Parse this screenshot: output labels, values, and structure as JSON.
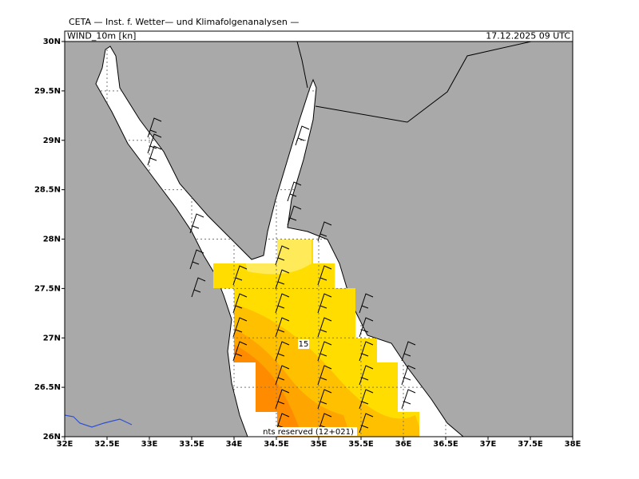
{
  "header": {
    "title": "CETA — Inst. f. Wetter— und Klimafolgenanalysen —",
    "parameter": "WIND_10m [kn]",
    "valid_time": "17.12.2025 09 UTC"
  },
  "map": {
    "xlim": [
      32,
      38
    ],
    "ylim": [
      26,
      30
    ],
    "xticks": [
      {
        "value": 32,
        "label": "32E"
      },
      {
        "value": 32.5,
        "label": "32.5E"
      },
      {
        "value": 33,
        "label": "33E"
      },
      {
        "value": 33.5,
        "label": "33.5E"
      },
      {
        "value": 34,
        "label": "34E"
      },
      {
        "value": 34.5,
        "label": "34.5E"
      },
      {
        "value": 35,
        "label": "35E"
      },
      {
        "value": 35.5,
        "label": "35.5E"
      },
      {
        "value": 36,
        "label": "36E"
      },
      {
        "value": 36.5,
        "label": "36.5E"
      },
      {
        "value": 37,
        "label": "37E"
      },
      {
        "value": 37.5,
        "label": "37.5E"
      },
      {
        "value": 38,
        "label": "38E"
      }
    ],
    "yticks": [
      {
        "value": 26,
        "label": "26N"
      },
      {
        "value": 26.5,
        "label": "26.5N"
      },
      {
        "value": 27,
        "label": "27N"
      },
      {
        "value": 27.5,
        "label": "27.5N"
      },
      {
        "value": 28,
        "label": "28N"
      },
      {
        "value": 28.5,
        "label": "28.5N"
      },
      {
        "value": 29,
        "label": "29N"
      },
      {
        "value": 29.5,
        "label": "29.5N"
      },
      {
        "value": 30,
        "label": "30N"
      }
    ],
    "contour_label": "15",
    "footer": "nts reserved (12+021)"
  }
}
